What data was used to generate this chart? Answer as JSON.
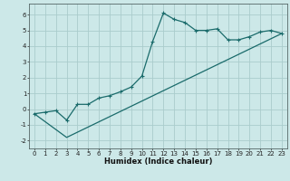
{
  "xlabel": "Humidex (Indice chaleur)",
  "xlim": [
    -0.5,
    23.5
  ],
  "ylim": [
    -2.5,
    6.7
  ],
  "yticks": [
    -2,
    -1,
    0,
    1,
    2,
    3,
    4,
    5,
    6
  ],
  "xticks": [
    0,
    1,
    2,
    3,
    4,
    5,
    6,
    7,
    8,
    9,
    10,
    11,
    12,
    13,
    14,
    15,
    16,
    17,
    18,
    19,
    20,
    21,
    22,
    23
  ],
  "background_color": "#cce8e8",
  "grid_color": "#aacccc",
  "line_color": "#1a6b6b",
  "curve1_x": [
    0,
    1,
    2,
    3,
    4,
    5,
    6,
    7,
    8,
    9,
    10,
    11,
    12,
    13,
    14,
    15,
    16,
    17,
    18,
    19,
    20,
    21,
    22,
    23
  ],
  "curve1_y": [
    -0.3,
    -0.2,
    -0.1,
    -0.7,
    0.3,
    0.3,
    0.7,
    0.85,
    1.1,
    1.4,
    2.1,
    4.3,
    6.1,
    5.7,
    5.5,
    5.0,
    5.0,
    5.1,
    4.4,
    4.4,
    4.6,
    4.9,
    5.0,
    4.8
  ],
  "curve2_x": [
    0,
    3,
    23
  ],
  "curve2_y": [
    -0.3,
    -1.8,
    4.8
  ],
  "tick_fontsize": 5.0,
  "xlabel_fontsize": 6.0,
  "marker_size": 3.5,
  "linewidth": 0.9
}
